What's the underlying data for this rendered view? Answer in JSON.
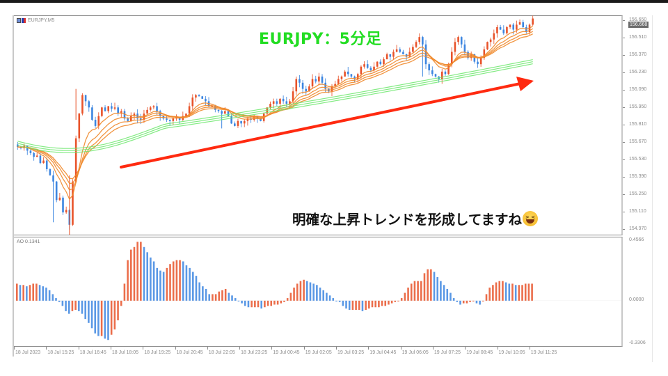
{
  "window": {
    "symbol_label": "EURJPY,M5",
    "current_price": "156.668"
  },
  "annotations": {
    "title": "EURJPY：5分足",
    "note": "明確な上昇トレンドを形成してますね",
    "emoji": "grinning-squinting-face",
    "arrow_color": "#ff2a10"
  },
  "price_axis": {
    "labels": [
      "156.650",
      "156.510",
      "156.370",
      "156.230",
      "156.090",
      "155.950",
      "155.810",
      "155.670",
      "155.530",
      "155.390",
      "155.250",
      "155.110",
      "154.970"
    ],
    "min": 154.92,
    "max": 156.69
  },
  "ao_axis": {
    "indicator_label": "AO 0.1341",
    "labels": [
      "0.4566",
      "0.0000",
      "-0.3306"
    ],
    "max": 0.4566,
    "min": -0.3306
  },
  "time_axis": {
    "labels": [
      "18 Jul 2023",
      "18 Jul 15:25",
      "18 Jul 16:45",
      "18 Jul 18:05",
      "18 Jul 19:25",
      "18 Jul 20:45",
      "18 Jul 22:05",
      "18 Jul 23:25",
      "19 Jul 00:45",
      "19 Jul 02:05",
      "19 Jul 03:25",
      "19 Jul 04:45",
      "19 Jul 06:05",
      "19 Jul 07:25",
      "19 Jul 08:45",
      "19 Jul 10:05",
      "19 Jul 11:25"
    ]
  },
  "colors": {
    "bull": "#e8532a",
    "bear": "#3d86e0",
    "ema_fast": "#f08a2c",
    "ema_slow": "#6ee86e",
    "title_green": "#22dd22",
    "price_tag_bg": "#6b6b6b"
  },
  "chart_data": {
    "type": "candlestick",
    "title": "EURJPY,M5",
    "xlabel": "",
    "ylabel": "Price",
    "ylim": [
      154.92,
      156.69
    ],
    "categories": [
      "18 Jul 2023",
      "18 Jul 15:25",
      "18 Jul 16:45",
      "18 Jul 18:05",
      "18 Jul 19:25",
      "18 Jul 20:45",
      "18 Jul 22:05",
      "18 Jul 23:25",
      "19 Jul 00:45",
      "19 Jul 02:05",
      "19 Jul 03:25",
      "19 Jul 04:45",
      "19 Jul 06:05",
      "19 Jul 07:25",
      "19 Jul 08:45",
      "19 Jul 10:05",
      "19 Jul 11:25"
    ],
    "close_series": [
      155.63,
      155.62,
      155.64,
      155.6,
      155.58,
      155.55,
      155.56,
      155.5,
      155.52,
      155.45,
      155.4,
      155.35,
      155.2,
      155.22,
      155.1,
      155.12,
      155.0,
      155.35,
      155.7,
      155.9,
      156.05,
      156.0,
      155.95,
      155.85,
      155.8,
      155.88,
      155.95,
      155.92,
      155.96,
      155.94,
      155.95,
      155.9,
      155.92,
      155.86,
      155.84,
      155.88,
      155.9,
      155.86,
      155.85,
      155.9,
      155.93,
      155.95,
      155.96,
      155.92,
      155.88,
      155.86,
      155.85,
      155.84,
      155.86,
      155.87,
      155.85,
      155.88,
      155.9,
      155.96,
      156.03,
      156.05,
      156.04,
      156.02,
      156.0,
      155.96,
      155.96,
      155.93,
      155.92,
      155.9,
      155.92,
      155.88,
      155.82,
      155.8,
      155.84,
      155.82,
      155.84,
      155.86,
      155.85,
      155.88,
      155.86,
      155.84,
      155.9,
      155.95,
      155.98,
      156.0,
      155.98,
      156.02,
      156.0,
      155.98,
      156.0,
      156.08,
      156.18,
      156.15,
      156.1,
      156.08,
      156.12,
      156.18,
      156.16,
      156.2,
      156.15,
      156.1,
      156.08,
      156.12,
      156.14,
      156.18,
      156.2,
      156.24,
      156.22,
      156.2,
      156.18,
      156.22,
      156.28,
      156.3,
      156.27,
      156.25,
      156.28,
      156.32,
      156.3,
      156.34,
      156.38,
      156.36,
      156.4,
      156.42,
      156.4,
      156.38,
      156.36,
      156.4,
      156.44,
      156.48,
      156.52,
      156.46,
      156.3,
      156.25,
      156.22,
      156.2,
      156.18,
      156.24,
      156.22,
      156.3,
      156.4,
      156.48,
      156.52,
      156.46,
      156.4,
      156.35,
      156.38,
      156.32,
      156.3,
      156.35,
      156.42,
      156.48,
      156.5,
      156.55,
      156.6,
      156.58,
      156.55,
      156.6,
      156.62,
      156.58,
      156.62,
      156.64,
      156.6,
      156.56,
      156.62,
      156.67
    ],
    "series": [
      {
        "name": "EMA fast ribbon (orange)",
        "start": 155.45,
        "end": 156.53
      },
      {
        "name": "EMA slow ribbon (green)",
        "start": 155.66,
        "end": 156.32
      }
    ],
    "ao_data": {
      "title": "AO 0.1341",
      "ylim": [
        -0.3306,
        0.4566
      ],
      "values": [
        0.13,
        0.12,
        0.12,
        0.11,
        0.12,
        0.13,
        0.13,
        0.12,
        0.11,
        0.1,
        0.08,
        0.05,
        0.02,
        -0.01,
        -0.04,
        -0.08,
        -0.1,
        -0.08,
        -0.07,
        -0.08,
        -0.1,
        -0.14,
        -0.17,
        -0.21,
        -0.25,
        -0.27,
        -0.27,
        -0.29,
        -0.3,
        -0.26,
        -0.22,
        -0.15,
        -0.04,
        0.13,
        0.31,
        0.39,
        0.41,
        0.45,
        0.45,
        0.41,
        0.37,
        0.33,
        0.3,
        0.25,
        0.23,
        0.22,
        0.25,
        0.28,
        0.3,
        0.31,
        0.31,
        0.3,
        0.27,
        0.25,
        0.22,
        0.19,
        0.14,
        0.11,
        0.09,
        0.05,
        0.05,
        0.05,
        0.07,
        0.08,
        0.09,
        0.06,
        0.04,
        0.02,
        0.0,
        -0.02,
        -0.04,
        -0.05,
        -0.05,
        -0.05,
        -0.05,
        -0.06,
        -0.05,
        -0.04,
        -0.04,
        -0.03,
        -0.03,
        -0.02,
        -0.01,
        0.02,
        0.06,
        0.1,
        0.13,
        0.15,
        0.16,
        0.15,
        0.14,
        0.13,
        0.12,
        0.1,
        0.08,
        0.06,
        0.04,
        0.02,
        0.0,
        -0.01,
        -0.04,
        -0.06,
        -0.07,
        -0.07,
        -0.07,
        -0.07,
        -0.08,
        -0.07,
        -0.06,
        -0.05,
        -0.05,
        -0.05,
        -0.04,
        -0.04,
        -0.03,
        -0.02,
        -0.01,
        0.0,
        0.02,
        0.06,
        0.1,
        0.13,
        0.15,
        0.15,
        0.15,
        0.21,
        0.24,
        0.24,
        0.22,
        0.18,
        0.15,
        0.12,
        0.09,
        0.06,
        0.02,
        -0.01,
        -0.03,
        -0.02,
        -0.02,
        -0.01,
        0.0,
        -0.02,
        -0.03,
        0.0,
        0.05,
        0.1,
        0.12,
        0.14,
        0.15,
        0.15,
        0.14,
        0.13,
        0.13,
        0.12,
        0.12,
        0.12,
        0.13,
        0.13,
        0.13
      ]
    }
  }
}
